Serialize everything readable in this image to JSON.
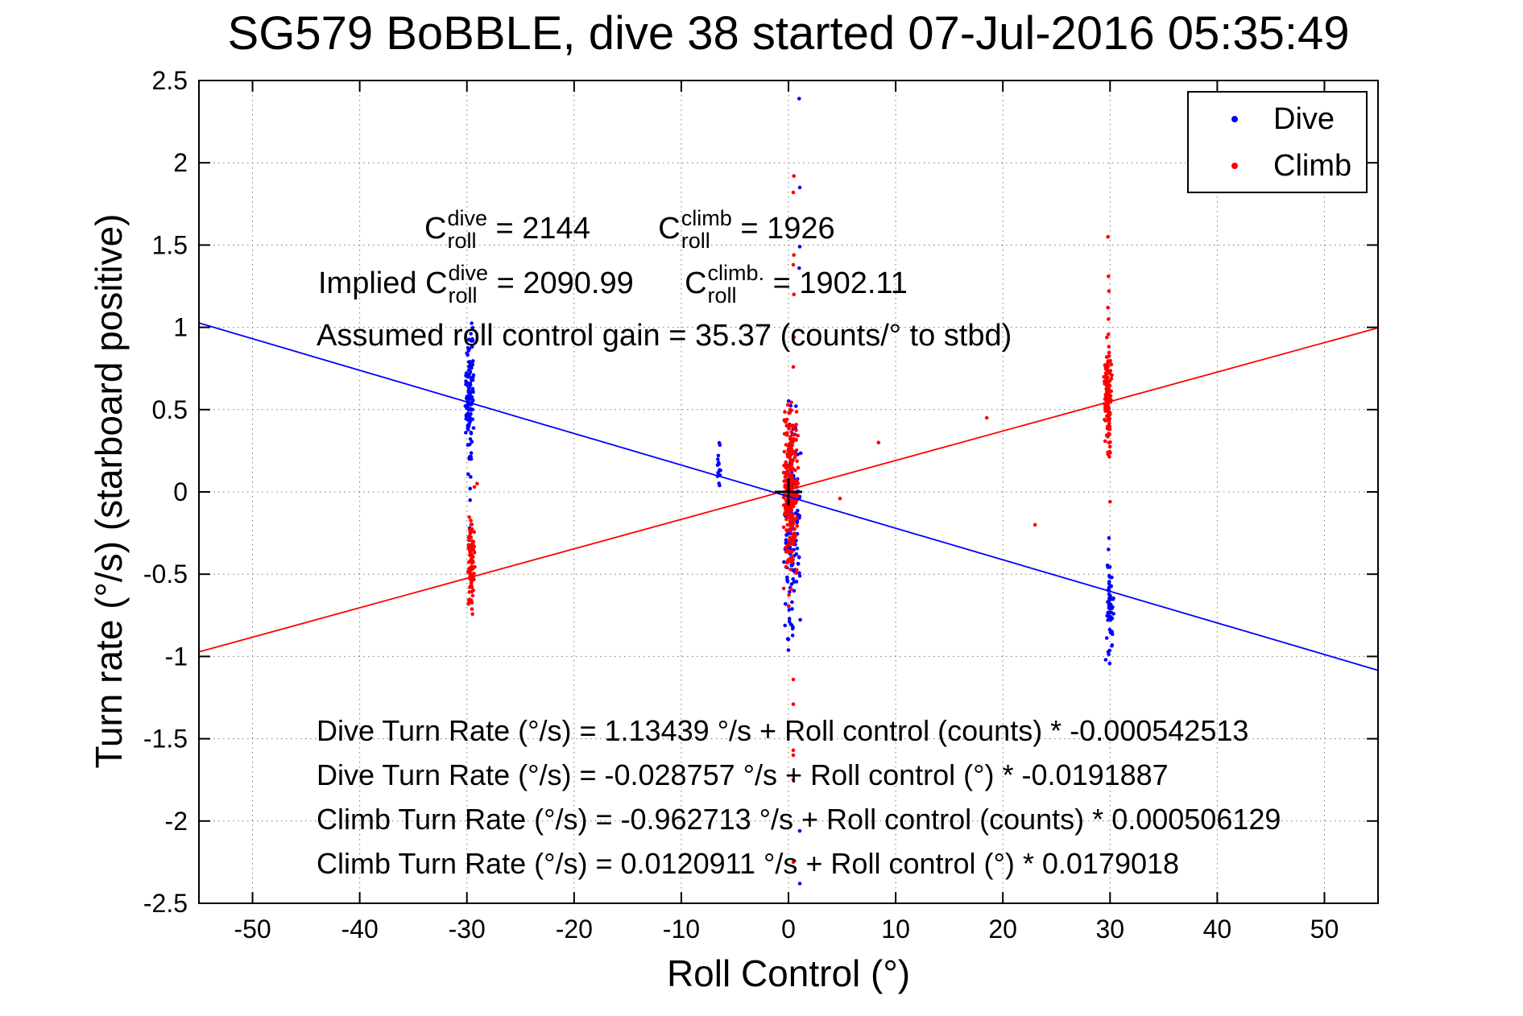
{
  "title": "SG579 BoBBLE, dive 38 started 07-Jul-2016 05:35:49",
  "chart_data": {
    "type": "scatter",
    "xlabel": "Roll Control (°)",
    "ylabel": "Turn rate (°/s) (starboard positive)",
    "xlim": [
      -55,
      55
    ],
    "ylim": [
      -2.5,
      2.5
    ],
    "xticks": [
      -50,
      -40,
      -30,
      -20,
      -10,
      0,
      10,
      20,
      30,
      40,
      50
    ],
    "yticks": [
      2.5,
      2,
      1.5,
      1,
      0.5,
      0,
      -0.5,
      -1,
      -1.5,
      -2,
      -2.5
    ],
    "grid": "dotted",
    "colors": {
      "dive": "#0000ff",
      "climb": "#ff0000",
      "axis": "#000000",
      "background": "#ffffff"
    },
    "legend": {
      "position": "northeast",
      "entries": [
        {
          "label": "Dive",
          "color": "#0000ff"
        },
        {
          "label": "Climb",
          "color": "#ff0000"
        }
      ]
    },
    "series": [
      {
        "name": "Dive",
        "color": "#0000ff",
        "clusters": [
          {
            "x": -29.75,
            "x_spread": 0.28,
            "y_mean": 0.56,
            "y_std": 0.19,
            "y_min": 0.08,
            "y_max": 1.04,
            "n": 115
          },
          {
            "x": -6.5,
            "x_spread": 0.12,
            "y_mean": 0.16,
            "y_std": 0.1,
            "y_min": 0.01,
            "y_max": 0.33,
            "n": 14
          },
          {
            "x": 0.35,
            "x_spread": 0.55,
            "y_mean": -0.18,
            "y_std": 0.36,
            "y_min": -1.02,
            "y_max": 0.62,
            "n": 140
          },
          {
            "x": 30.0,
            "x_spread": 0.22,
            "y_mean": -0.7,
            "y_std": 0.17,
            "y_min": -1.08,
            "y_max": -0.44,
            "n": 60
          }
        ],
        "points": [
          [
            -29.7,
            -0.05
          ],
          [
            -29.75,
            -0.22
          ],
          [
            -29.7,
            0.02
          ],
          [
            1.0,
            2.39
          ],
          [
            1.05,
            1.85
          ],
          [
            1.05,
            1.49
          ],
          [
            1.0,
            1.36
          ],
          [
            1.05,
            -2.06
          ],
          [
            1.05,
            -2.38
          ],
          [
            29.9,
            -0.28
          ],
          [
            29.85,
            -0.35
          ],
          [
            29.6,
            -1.02
          ]
        ]
      },
      {
        "name": "Climb",
        "color": "#ff0000",
        "clusters": [
          {
            "x": -29.6,
            "x_spread": 0.22,
            "y_mean": -0.43,
            "y_std": 0.15,
            "y_min": -0.77,
            "y_max": -0.13,
            "n": 90
          },
          {
            "x": 0.2,
            "x_spread": 0.45,
            "y_mean": 0.02,
            "y_std": 0.27,
            "y_min": -0.97,
            "y_max": 0.56,
            "n": 280
          },
          {
            "x": 29.8,
            "x_spread": 0.25,
            "y_mean": 0.61,
            "y_std": 0.17,
            "y_min": 0.09,
            "y_max": 0.97,
            "n": 130
          }
        ],
        "points": [
          [
            -29.3,
            0.03
          ],
          [
            -29.05,
            0.05
          ],
          [
            0.5,
            1.92
          ],
          [
            0.45,
            1.82
          ],
          [
            0.5,
            1.44
          ],
          [
            0.45,
            1.38
          ],
          [
            0.5,
            1.2
          ],
          [
            0.5,
            0.94
          ],
          [
            0.45,
            0.76
          ],
          [
            0.45,
            -1.14
          ],
          [
            0.45,
            -1.29
          ],
          [
            0.45,
            -1.57
          ],
          [
            0.45,
            -1.6
          ],
          [
            0.45,
            -1.75
          ],
          [
            0.45,
            -2.25
          ],
          [
            29.8,
            1.55
          ],
          [
            29.85,
            1.31
          ],
          [
            29.9,
            1.22
          ],
          [
            29.8,
            1.12
          ],
          [
            29.85,
            1.05
          ],
          [
            29.8,
            0.24
          ],
          [
            30.0,
            -0.06
          ],
          [
            18.5,
            0.45
          ],
          [
            23.0,
            -0.2
          ],
          [
            4.8,
            -0.04
          ],
          [
            8.4,
            0.3
          ]
        ]
      }
    ],
    "fit_lines": [
      {
        "name": "dive-fit",
        "color": "#0000ff",
        "intercept": -0.028757,
        "slope": -0.0191887
      },
      {
        "name": "climb-fit",
        "color": "#ff0000",
        "intercept": 0.0120911,
        "slope": 0.0179018
      }
    ],
    "origin_marker": {
      "x": 0,
      "y": 0,
      "type": "plus",
      "color": "#000000"
    }
  },
  "annotations": {
    "croll_line": [
      {
        "base": "C",
        "sup": "dive",
        "sub": "roll"
      },
      {
        "text": " = 2144"
      },
      {
        "text": "        "
      },
      {
        "base": "C",
        "sup": "climb",
        "sub": "roll"
      },
      {
        "text": " = 1926"
      }
    ],
    "implied_line": [
      {
        "text": "Implied "
      },
      {
        "base": "C",
        "sup": "dive",
        "sub": "roll"
      },
      {
        "text": " = 2090.99"
      },
      {
        "text": "      "
      },
      {
        "base": "C",
        "sup": "climb.",
        "sub": "roll"
      },
      {
        "text": " = 1902.11"
      }
    ],
    "gain_line": [
      {
        "text": "Assumed roll control gain = 35.37 (counts/° to stbd)"
      }
    ],
    "equations": [
      "Dive Turn Rate (°/s) = 1.13439 °/s + Roll control (counts) * -0.000542513",
      "Dive Turn Rate (°/s) = -0.028757 °/s + Roll control (°) * -0.0191887",
      "Climb Turn Rate (°/s) = -0.962713 °/s + Roll control (counts) * 0.000506129",
      "Climb Turn Rate (°/s) = 0.0120911 °/s + Roll control (°) * 0.0179018"
    ]
  }
}
